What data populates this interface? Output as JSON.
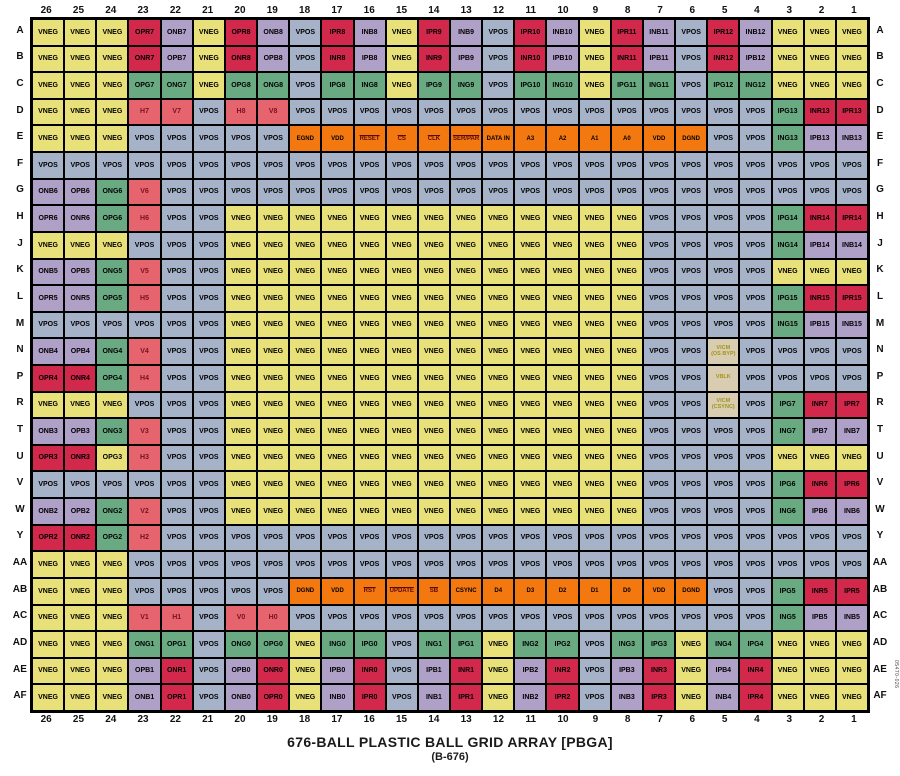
{
  "title": "676-BALL PLASTIC BALL GRID ARRAY [PBGA]",
  "subtitle": "(B-676)",
  "fig_number": "05470-026",
  "colors": {
    "vneg_yellow": "#e8e078",
    "vpos_blue": "#a5b2c8",
    "red_signal": "#d2284b",
    "sync_salmon": "#e6646e",
    "blue_signal_purple": "#afa0c8",
    "green_signal": "#69aa82",
    "digital_orange": "#f3780f",
    "reference_tan": "#d8cdb0"
  },
  "grid": {
    "col_labels": [
      "26",
      "25",
      "24",
      "23",
      "22",
      "21",
      "20",
      "19",
      "18",
      "17",
      "16",
      "15",
      "14",
      "13",
      "12",
      "11",
      "10",
      "9",
      "8",
      "7",
      "6",
      "5",
      "4",
      "3",
      "2",
      "1"
    ],
    "row_labels": [
      "A",
      "B",
      "C",
      "D",
      "E",
      "F",
      "G",
      "H",
      "J",
      "K",
      "L",
      "M",
      "N",
      "P",
      "R",
      "T",
      "U",
      "V",
      "W",
      "Y",
      "AA",
      "AB",
      "AC",
      "AD",
      "AE",
      "AF"
    ],
    "rows": [
      [
        "VNEG|y",
        "VNEG|y",
        "VNEG|y",
        "OPR7|r",
        "ONB7|p",
        "VNEG|y",
        "OPR8|r",
        "ONB8|p",
        "VPOS|b",
        "IPR8|r",
        "INB8|p",
        "VNEG|y",
        "IPR9|r",
        "INB9|p",
        "VPOS|b",
        "IPR10|r",
        "INB10|p",
        "VNEG|y",
        "IPR11|r",
        "INB11|p",
        "VPOS|b",
        "IPR12|r",
        "INB12|p",
        "VNEG|y",
        "VNEG|y",
        "VNEG|y"
      ],
      [
        "VNEG|y",
        "VNEG|y",
        "VNEG|y",
        "ONR7|r",
        "OPB7|p",
        "VNEG|y",
        "ONR8|r",
        "OPB8|p",
        "VPOS|b",
        "INR8|r",
        "IPB8|p",
        "VNEG|y",
        "INR9|r",
        "IPB9|p",
        "VPOS|b",
        "INR10|r",
        "IPB10|p",
        "VNEG|y",
        "INR11|r",
        "IPB11|p",
        "VPOS|b",
        "INR12|r",
        "IPB12|p",
        "VNEG|y",
        "VNEG|y",
        "VNEG|y"
      ],
      [
        "VNEG|y",
        "VNEG|y",
        "VNEG|y",
        "OPG7|g",
        "ONG7|g",
        "VNEG|y",
        "OPG8|g",
        "ONG8|g",
        "VPOS|b",
        "IPG8|g",
        "ING8|g",
        "VNEG|y",
        "IPG9|g",
        "ING9|g",
        "VPOS|b",
        "IPG10|g",
        "ING10|g",
        "VNEG|y",
        "IPG11|g",
        "ING11|g",
        "VPOS|b",
        "IPG12|g",
        "ING12|g",
        "VNEG|y",
        "VNEG|y",
        "VNEG|y"
      ],
      [
        "VNEG|y",
        "VNEG|y",
        "VNEG|y",
        "H7|s",
        "V7|s",
        "VPOS|b",
        "H8|s",
        "V8|s",
        "VPOS|b",
        "VPOS|b",
        "VPOS|b",
        "VPOS|b",
        "VPOS|b",
        "VPOS|b",
        "VPOS|b",
        "VPOS|b",
        "VPOS|b",
        "VPOS|b",
        "VPOS|b",
        "VPOS|b",
        "VPOS|b",
        "VPOS|b",
        "VPOS|b",
        "IPG13|g",
        "INR13|r",
        "IPR13|r"
      ],
      [
        "VNEG|y",
        "VNEG|y",
        "VNEG|y",
        "VPOS|b",
        "VPOS|b",
        "VPOS|b",
        "VPOS|b",
        "VPOS|b",
        "EGND|o",
        "VDD|o",
        "^RESET|o",
        "^CS|o",
        "^CLK|o",
        "^SER/PAR|o",
        "DATA IN|o",
        "A3|o",
        "A2|o",
        "A1|o",
        "A0|o",
        "VDD|o",
        "DGND|o",
        "VPOS|b",
        "VPOS|b",
        "ING13|g",
        "IPB13|p",
        "INB13|p"
      ],
      [
        "VPOS|b",
        "VPOS|b",
        "VPOS|b",
        "VPOS|b",
        "VPOS|b",
        "VPOS|b",
        "VPOS|b",
        "VPOS|b",
        "VPOS|b",
        "VPOS|b",
        "VPOS|b",
        "VPOS|b",
        "VPOS|b",
        "VPOS|b",
        "VPOS|b",
        "VPOS|b",
        "VPOS|b",
        "VPOS|b",
        "VPOS|b",
        "VPOS|b",
        "VPOS|b",
        "VPOS|b",
        "VPOS|b",
        "VPOS|b",
        "VPOS|b",
        "VPOS|b"
      ],
      [
        "ONB6|p",
        "OPB6|p",
        "ONG6|g",
        "V6|s",
        "VPOS|b",
        "VPOS|b",
        "VPOS|b",
        "VPOS|b",
        "VPOS|b",
        "VPOS|b",
        "VPOS|b",
        "VPOS|b",
        "VPOS|b",
        "VPOS|b",
        "VPOS|b",
        "VPOS|b",
        "VPOS|b",
        "VPOS|b",
        "VPOS|b",
        "VPOS|b",
        "VPOS|b",
        "VPOS|b",
        "VPOS|b",
        "VPOS|b",
        "VPOS|b",
        "VPOS|b"
      ],
      [
        "OPR6|p",
        "ONR6|p",
        "OPG6|g",
        "H6|s",
        "VPOS|b",
        "VPOS|b",
        "VNEG|y",
        "VNEG|y",
        "VNEG|y",
        "VNEG|y",
        "VNEG|y",
        "VNEG|y",
        "VNEG|y",
        "VNEG|y",
        "VNEG|y",
        "VNEG|y",
        "VNEG|y",
        "VNEG|y",
        "VNEG|y",
        "VPOS|b",
        "VPOS|b",
        "VPOS|b",
        "VPOS|b",
        "IPG14|g",
        "INR14|r",
        "IPR14|r"
      ],
      [
        "VNEG|y",
        "VNEG|y",
        "VNEG|y",
        "VPOS|b",
        "VPOS|b",
        "VPOS|b",
        "VNEG|y",
        "VNEG|y",
        "VNEG|y",
        "VNEG|y",
        "VNEG|y",
        "VNEG|y",
        "VNEG|y",
        "VNEG|y",
        "VNEG|y",
        "VNEG|y",
        "VNEG|y",
        "VNEG|y",
        "VNEG|y",
        "VPOS|b",
        "VPOS|b",
        "VPOS|b",
        "VPOS|b",
        "ING14|g",
        "IPB14|p",
        "INB14|p"
      ],
      [
        "ONB5|p",
        "OPB5|p",
        "ONG5|g",
        "V5|s",
        "VPOS|b",
        "VPOS|b",
        "VNEG|y",
        "VNEG|y",
        "VNEG|y",
        "VNEG|y",
        "VNEG|y",
        "VNEG|y",
        "VNEG|y",
        "VNEG|y",
        "VNEG|y",
        "VNEG|y",
        "VNEG|y",
        "VNEG|y",
        "VNEG|y",
        "VPOS|b",
        "VPOS|b",
        "VPOS|b",
        "VPOS|b",
        "VNEG|y",
        "VNEG|y",
        "VNEG|y"
      ],
      [
        "OPR5|p",
        "ONR5|p",
        "OPG5|g",
        "H5|s",
        "VPOS|b",
        "VPOS|b",
        "VNEG|y",
        "VNEG|y",
        "VNEG|y",
        "VNEG|y",
        "VNEG|y",
        "VNEG|y",
        "VNEG|y",
        "VNEG|y",
        "VNEG|y",
        "VNEG|y",
        "VNEG|y",
        "VNEG|y",
        "VNEG|y",
        "VPOS|b",
        "VPOS|b",
        "VPOS|b",
        "VPOS|b",
        "IPG15|g",
        "INR15|r",
        "IPR15|r"
      ],
      [
        "VPOS|b",
        "VPOS|b",
        "VPOS|b",
        "VPOS|b",
        "VPOS|b",
        "VPOS|b",
        "VNEG|y",
        "VNEG|y",
        "VNEG|y",
        "VNEG|y",
        "VNEG|y",
        "VNEG|y",
        "VNEG|y",
        "VNEG|y",
        "VNEG|y",
        "VNEG|y",
        "VNEG|y",
        "VNEG|y",
        "VNEG|y",
        "VPOS|b",
        "VPOS|b",
        "VPOS|b",
        "VPOS|b",
        "ING15|g",
        "IPB15|p",
        "INB15|p"
      ],
      [
        "ONB4|p",
        "OPB4|p",
        "ONG4|g",
        "V4|s",
        "VPOS|b",
        "VPOS|b",
        "VNEG|y",
        "VNEG|y",
        "VNEG|y",
        "VNEG|y",
        "VNEG|y",
        "VNEG|y",
        "VNEG|y",
        "VNEG|y",
        "VNEG|y",
        "VNEG|y",
        "VNEG|y",
        "VNEG|y",
        "VNEG|y",
        "VPOS|b",
        "VPOS|b",
        "VICM\n(OS BYP)|t",
        "VPOS|b",
        "VPOS|b",
        "VPOS|b",
        "VPOS|b"
      ],
      [
        "OPR4|r",
        "ONR4|r",
        "OPG4|g",
        "H4|s",
        "VPOS|b",
        "VPOS|b",
        "VNEG|y",
        "VNEG|y",
        "VNEG|y",
        "VNEG|y",
        "VNEG|y",
        "VNEG|y",
        "VNEG|y",
        "VNEG|y",
        "VNEG|y",
        "VNEG|y",
        "VNEG|y",
        "VNEG|y",
        "VNEG|y",
        "VPOS|b",
        "VPOS|b",
        "VBLK|t",
        "VPOS|b",
        "VPOS|b",
        "VPOS|b",
        "VPOS|b"
      ],
      [
        "VNEG|y",
        "VNEG|y",
        "VNEG|y",
        "VPOS|b",
        "VPOS|b",
        "VPOS|b",
        "VNEG|y",
        "VNEG|y",
        "VNEG|y",
        "VNEG|y",
        "VNEG|y",
        "VNEG|y",
        "VNEG|y",
        "VNEG|y",
        "VNEG|y",
        "VNEG|y",
        "VNEG|y",
        "VNEG|y",
        "VNEG|y",
        "VPOS|b",
        "VPOS|b",
        "VICM\n(CSYNC)|t",
        "VPOS|b",
        "IPG7|g",
        "INR7|r",
        "IPR7|r"
      ],
      [
        "ONB3|p",
        "OPB3|p",
        "ONG3|g",
        "V3|s",
        "VPOS|b",
        "VPOS|b",
        "VNEG|y",
        "VNEG|y",
        "VNEG|y",
        "VNEG|y",
        "VNEG|y",
        "VNEG|y",
        "VNEG|y",
        "VNEG|y",
        "VNEG|y",
        "VNEG|y",
        "VNEG|y",
        "VNEG|y",
        "VNEG|y",
        "VPOS|b",
        "VPOS|b",
        "VPOS|b",
        "VPOS|b",
        "ING7|g",
        "IPB7|p",
        "INB7|p"
      ],
      [
        "OPR3|r",
        "ONR3|r",
        "OPG3|y",
        "H3|s",
        "VPOS|b",
        "VPOS|b",
        "VNEG|y",
        "VNEG|y",
        "VNEG|y",
        "VNEG|y",
        "VNEG|y",
        "VNEG|y",
        "VNEG|y",
        "VNEG|y",
        "VNEG|y",
        "VNEG|y",
        "VNEG|y",
        "VNEG|y",
        "VNEG|y",
        "VPOS|b",
        "VPOS|b",
        "VPOS|b",
        "VPOS|b",
        "VNEG|y",
        "VNEG|y",
        "VNEG|y"
      ],
      [
        "VPOS|b",
        "VPOS|b",
        "VPOS|b",
        "VPOS|b",
        "VPOS|b",
        "VPOS|b",
        "VNEG|y",
        "VNEG|y",
        "VNEG|y",
        "VNEG|y",
        "VNEG|y",
        "VNEG|y",
        "VNEG|y",
        "VNEG|y",
        "VNEG|y",
        "VNEG|y",
        "VNEG|y",
        "VNEG|y",
        "VNEG|y",
        "VPOS|b",
        "VPOS|b",
        "VPOS|b",
        "VPOS|b",
        "IPG6|g",
        "INR6|r",
        "IPR6|r"
      ],
      [
        "ONB2|p",
        "OPB2|p",
        "ONG2|g",
        "V2|s",
        "VPOS|b",
        "VPOS|b",
        "VNEG|y",
        "VNEG|y",
        "VNEG|y",
        "VNEG|y",
        "VNEG|y",
        "VNEG|y",
        "VNEG|y",
        "VNEG|y",
        "VNEG|y",
        "VNEG|y",
        "VNEG|y",
        "VNEG|y",
        "VNEG|y",
        "VPOS|b",
        "VPOS|b",
        "VPOS|b",
        "VPOS|b",
        "ING6|g",
        "IPB6|p",
        "INB6|p"
      ],
      [
        "OPR2|r",
        "ONR2|r",
        "OPG2|g",
        "H2|s",
        "VPOS|b",
        "VPOS|b",
        "VPOS|b",
        "VPOS|b",
        "VPOS|b",
        "VPOS|b",
        "VPOS|b",
        "VPOS|b",
        "VPOS|b",
        "VPOS|b",
        "VPOS|b",
        "VPOS|b",
        "VPOS|b",
        "VPOS|b",
        "VPOS|b",
        "VPOS|b",
        "VPOS|b",
        "VPOS|b",
        "VPOS|b",
        "VPOS|b",
        "VPOS|b",
        "VPOS|b"
      ],
      [
        "VNEG|y",
        "VNEG|y",
        "VNEG|y",
        "VPOS|b",
        "VPOS|b",
        "VPOS|b",
        "VPOS|b",
        "VPOS|b",
        "VPOS|b",
        "VPOS|b",
        "VPOS|b",
        "VPOS|b",
        "VPOS|b",
        "VPOS|b",
        "VPOS|b",
        "VPOS|b",
        "VPOS|b",
        "VPOS|b",
        "VPOS|b",
        "VPOS|b",
        "VPOS|b",
        "VPOS|b",
        "VPOS|b",
        "VPOS|b",
        "VPOS|b",
        "VPOS|b"
      ],
      [
        "VNEG|y",
        "VNEG|y",
        "VNEG|y",
        "VPOS|b",
        "VPOS|b",
        "VPOS|b",
        "VPOS|b",
        "VPOS|b",
        "DGND|o",
        "VDD|o",
        "^RST|o",
        "^UPDATE|o",
        "^SB|o",
        "CSYNC|o",
        "D4|o",
        "D3|o",
        "D2|o",
        "D1|o",
        "D0|o",
        "VDD|o",
        "DGND|o",
        "VPOS|b",
        "VPOS|b",
        "IPG5|g",
        "INR5|r",
        "IPR5|r"
      ],
      [
        "VNEG|y",
        "VNEG|y",
        "VNEG|y",
        "V1|s",
        "H1|s",
        "VPOS|b",
        "V0|s",
        "H0|s",
        "VPOS|b",
        "VPOS|b",
        "VPOS|b",
        "VPOS|b",
        "VPOS|b",
        "VPOS|b",
        "VPOS|b",
        "VPOS|b",
        "VPOS|b",
        "VPOS|b",
        "VPOS|b",
        "VPOS|b",
        "VPOS|b",
        "VPOS|b",
        "VPOS|b",
        "ING5|g",
        "IPB5|p",
        "INB5|p"
      ],
      [
        "VNEG|y",
        "VNEG|y",
        "VNEG|y",
        "ONG1|g",
        "OPG1|g",
        "VPOS|b",
        "ONG0|g",
        "OPG0|g",
        "VNEG|y",
        "ING0|g",
        "IPG0|g",
        "VPOS|b",
        "ING1|g",
        "IPG1|g",
        "VNEG|y",
        "ING2|g",
        "IPG2|g",
        "VPOS|b",
        "ING3|g",
        "IPG3|g",
        "VNEG|y",
        "ING4|g",
        "IPG4|g",
        "VNEG|y",
        "VNEG|y",
        "VNEG|y"
      ],
      [
        "VNEG|y",
        "VNEG|y",
        "VNEG|y",
        "OPB1|p",
        "ONR1|r",
        "VPOS|b",
        "OPB0|p",
        "ONR0|r",
        "VNEG|y",
        "IPB0|p",
        "INR0|r",
        "VPOS|b",
        "IPB1|p",
        "INR1|r",
        "VNEG|y",
        "IPB2|p",
        "INR2|r",
        "VPOS|b",
        "IPB3|p",
        "INR3|r",
        "VNEG|y",
        "IPB4|p",
        "INR4|r",
        "VNEG|y",
        "VNEG|y",
        "VNEG|y"
      ],
      [
        "VNEG|y",
        "VNEG|y",
        "VNEG|y",
        "ONB1|p",
        "OPR1|r",
        "VPOS|b",
        "ONB0|p",
        "OPR0|r",
        "VNEG|y",
        "INB0|p",
        "IPR0|r",
        "VPOS|b",
        "INB1|p",
        "IPR1|r",
        "VNEG|y",
        "INB2|p",
        "IPR2|r",
        "VPOS|b",
        "INB3|p",
        "IPR3|r",
        "VNEG|y",
        "INB4|p",
        "IPR4|r",
        "VNEG|y",
        "VNEG|y",
        "VNEG|y"
      ]
    ]
  }
}
